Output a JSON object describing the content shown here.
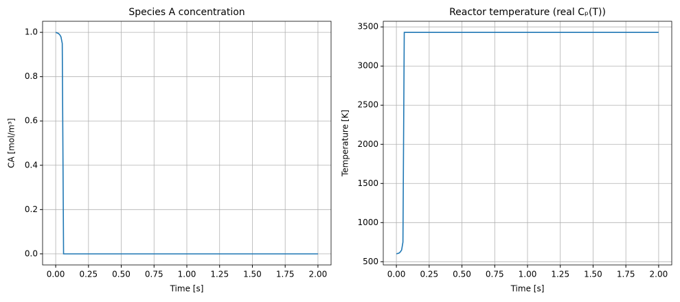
{
  "chart_data": [
    {
      "type": "line",
      "title": "Species A concentration",
      "x_label": "Time [s]",
      "y_label": "CA [mol/m³]",
      "x": [
        0,
        0.02,
        0.03,
        0.04,
        0.05,
        0.06,
        2.0
      ],
      "series": [
        {
          "name": "CA",
          "color": "#1f77b4",
          "values": [
            1.0,
            0.995,
            0.99,
            0.98,
            0.95,
            0.0,
            0.0
          ]
        }
      ],
      "xlim": [
        -0.1,
        2.1
      ],
      "ylim": [
        -0.05,
        1.05
      ],
      "xticks": [
        {
          "value": 0,
          "label": "0.00"
        },
        {
          "value": 0.25,
          "label": "0.25"
        },
        {
          "value": 0.5,
          "label": "0.50"
        },
        {
          "value": 0.75,
          "label": "0.75"
        },
        {
          "value": 1,
          "label": "1.00"
        },
        {
          "value": 1.25,
          "label": "1.25"
        },
        {
          "value": 1.5,
          "label": "1.50"
        },
        {
          "value": 1.75,
          "label": "1.75"
        },
        {
          "value": 2,
          "label": "2.00"
        }
      ],
      "yticks": [
        {
          "value": 0,
          "label": "0.0"
        },
        {
          "value": 0.2,
          "label": "0.2"
        },
        {
          "value": 0.4,
          "label": "0.4"
        },
        {
          "value": 0.6,
          "label": "0.6"
        },
        {
          "value": 0.8,
          "label": "0.8"
        },
        {
          "value": 1,
          "label": "1.0"
        }
      ],
      "grid": true
    },
    {
      "type": "line",
      "title": "Reactor temperature (real Cₚ(T))",
      "x_label": "Time [s]",
      "y_label": "Temperature [K]",
      "x": [
        0,
        0.02,
        0.03,
        0.04,
        0.05,
        0.06,
        2.0
      ],
      "series": [
        {
          "name": "T",
          "color": "#1f77b4",
          "values": [
            600,
            610,
            625,
            650,
            750,
            3430,
            3430
          ]
        }
      ],
      "xlim": [
        -0.1,
        2.1
      ],
      "ylim": [
        459,
        3572
      ],
      "xticks": [
        {
          "value": 0,
          "label": "0.00"
        },
        {
          "value": 0.25,
          "label": "0.25"
        },
        {
          "value": 0.5,
          "label": "0.50"
        },
        {
          "value": 0.75,
          "label": "0.75"
        },
        {
          "value": 1,
          "label": "1.00"
        },
        {
          "value": 1.25,
          "label": "1.25"
        },
        {
          "value": 1.5,
          "label": "1.50"
        },
        {
          "value": 1.75,
          "label": "1.75"
        },
        {
          "value": 2,
          "label": "2.00"
        }
      ],
      "yticks": [
        500,
        1000,
        1500,
        2000,
        2500,
        3000,
        3500
      ],
      "grid": true
    }
  ]
}
